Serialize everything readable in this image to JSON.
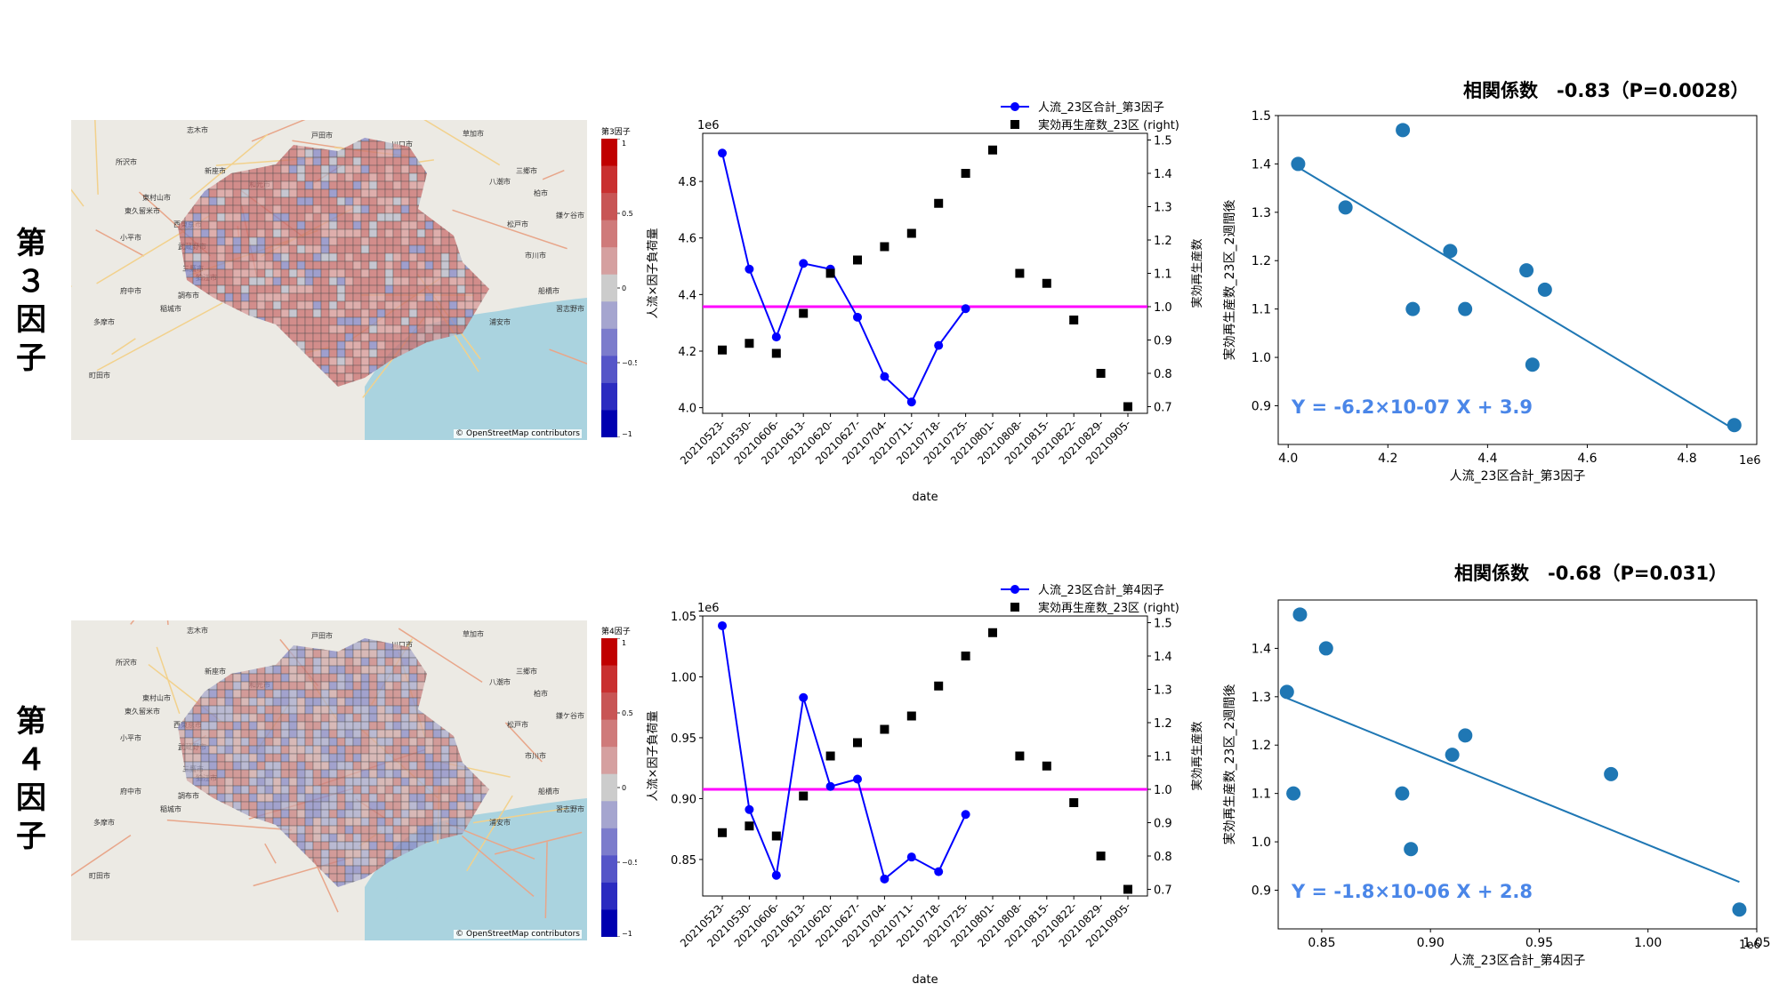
{
  "rows": [
    {
      "label": "第３因子",
      "map": {
        "colorbar_title": "第3因子",
        "colorbar_ticks": [
          "1",
          "0.5",
          "0",
          "−0.5",
          "−1"
        ],
        "attribution": "© OpenStreetMap contributors",
        "places": [
          "志木市",
          "戸田市",
          "川口市",
          "草加市",
          "三郷市",
          "所沢市",
          "新座市",
          "和光市",
          "八潮市",
          "東村山市",
          "東久留米市",
          "西東京市",
          "小平市",
          "武蔵野市",
          "三鷹市",
          "府中市",
          "調布市",
          "稲城市",
          "多摩市",
          "町田市",
          "狛江市",
          "浦安市",
          "市川市",
          "船橋市",
          "習志野市",
          "鎌ケ谷市",
          "松戸市",
          "柏市"
        ]
      },
      "chart_data": {
        "type": "line",
        "x": [
          "20210523-",
          "20210530-",
          "20210606-",
          "20210613-",
          "20210620-",
          "20210627-",
          "20210704-",
          "20210711-",
          "20210718-",
          "20210725-",
          "20210801-",
          "20210808-",
          "20210815-",
          "20210822-",
          "20210829-",
          "20210905-"
        ],
        "offset_label": "1e6",
        "xlabel": "date",
        "ylabel": "人流×因子負荷量",
        "ylabel_right": "実効再生産数",
        "ylim": [
          3.98,
          4.97
        ],
        "yticks": [
          4.0,
          4.2,
          4.4,
          4.6,
          4.8
        ],
        "ylim_right": [
          0.68,
          1.52
        ],
        "yticks_right": [
          0.7,
          0.8,
          0.9,
          1.0,
          1.1,
          1.2,
          1.3,
          1.4,
          1.5
        ],
        "hline_right": 1.0,
        "series": [
          {
            "name": "人流_23区合計_第3因子",
            "axis": "left",
            "color": "#0000ff",
            "values": [
              4.9,
              4.49,
              4.25,
              4.51,
              4.49,
              4.32,
              4.11,
              4.02,
              4.22,
              4.35,
              null,
              null,
              null,
              null,
              null,
              null
            ]
          },
          {
            "name": "実効再生産数_23区 (right)",
            "axis": "right",
            "color": "#000000",
            "values": [
              0.87,
              0.89,
              0.86,
              0.98,
              1.1,
              1.14,
              1.18,
              1.22,
              1.31,
              1.4,
              1.47,
              1.1,
              1.07,
              0.96,
              0.8,
              0.7
            ]
          }
        ]
      },
      "scatter": {
        "title": "相関係数　-0.83（P=0.0028）",
        "equation": "Y = -6.2×10-07 X + 3.9",
        "chart_data": {
          "type": "scatter",
          "xlabel": "人流_23区合計_第3因子",
          "ylabel": "実効再生産数_23区_2週間後",
          "offset_label": "1e6",
          "xlim": [
            3.98,
            4.94
          ],
          "xticks": [
            4.0,
            4.2,
            4.4,
            4.6,
            4.8
          ],
          "ylim": [
            0.82,
            1.5
          ],
          "yticks": [
            0.9,
            1.0,
            1.1,
            1.2,
            1.3,
            1.4,
            1.5
          ],
          "color": "#1f77b4",
          "points": [
            [
              4.02,
              1.4
            ],
            [
              4.115,
              1.31
            ],
            [
              4.23,
              1.47
            ],
            [
              4.25,
              1.1
            ],
            [
              4.325,
              1.22
            ],
            [
              4.355,
              1.1
            ],
            [
              4.478,
              1.18
            ],
            [
              4.49,
              0.985
            ],
            [
              4.515,
              1.14
            ],
            [
              4.895,
              0.86
            ]
          ],
          "fit_line": {
            "x": [
              4.02,
              4.895
            ],
            "y": [
              1.393,
              0.851
            ]
          }
        }
      }
    },
    {
      "label": "第４因子",
      "map": {
        "colorbar_title": "第4因子",
        "colorbar_ticks": [
          "1",
          "0.5",
          "0",
          "−0.5",
          "−1"
        ],
        "attribution": "© OpenStreetMap contributors",
        "places": [
          "志木市",
          "戸田市",
          "川口市",
          "草加市",
          "三郷市",
          "所沢市",
          "新座市",
          "和光市",
          "八潮市",
          "東村山市",
          "東久留米市",
          "西東京市",
          "小平市",
          "武蔵野市",
          "三鷹市",
          "府中市",
          "調布市",
          "稲城市",
          "多摩市",
          "町田市",
          "狛江市",
          "浦安市",
          "市川市",
          "船橋市",
          "習志野市",
          "鎌ケ谷市",
          "松戸市",
          "柏市"
        ]
      },
      "chart_data": {
        "type": "line",
        "x": [
          "20210523-",
          "20210530-",
          "20210606-",
          "20210613-",
          "20210620-",
          "20210627-",
          "20210704-",
          "20210711-",
          "20210718-",
          "20210725-",
          "20210801-",
          "20210808-",
          "20210815-",
          "20210822-",
          "20210829-",
          "20210905-"
        ],
        "offset_label": "1e6",
        "xlabel": "date",
        "ylabel": "人流×因子負荷量",
        "ylabel_right": "実効再生産数",
        "ylim": [
          0.82,
          1.05
        ],
        "yticks": [
          0.85,
          0.9,
          0.95,
          1.0,
          1.05
        ],
        "ylim_right": [
          0.68,
          1.52
        ],
        "yticks_right": [
          0.7,
          0.8,
          0.9,
          1.0,
          1.1,
          1.2,
          1.3,
          1.4,
          1.5
        ],
        "hline_right": 1.0,
        "series": [
          {
            "name": "人流_23区合計_第4因子",
            "axis": "left",
            "color": "#0000ff",
            "values": [
              1.042,
              0.891,
              0.837,
              0.983,
              0.91,
              0.916,
              0.834,
              0.852,
              0.84,
              0.887,
              null,
              null,
              null,
              null,
              null,
              null
            ]
          },
          {
            "name": "実効再生産数_23区 (right)",
            "axis": "right",
            "color": "#000000",
            "values": [
              0.87,
              0.89,
              0.86,
              0.98,
              1.1,
              1.14,
              1.18,
              1.22,
              1.31,
              1.4,
              1.47,
              1.1,
              1.07,
              0.96,
              0.8,
              0.7
            ]
          }
        ]
      },
      "scatter": {
        "title": "相関係数　-0.68（P=0.031）",
        "equation": "Y = -1.8×10-06 X + 2.8",
        "chart_data": {
          "type": "scatter",
          "xlabel": "人流_23区合計_第4因子",
          "ylabel": "実効再生産数_23区_2週間後",
          "offset_label": "1e6",
          "xlim": [
            0.83,
            1.05
          ],
          "xticks": [
            0.85,
            0.9,
            0.95,
            1.0,
            1.05
          ],
          "ylim": [
            0.82,
            1.5
          ],
          "yticks": [
            0.9,
            1.0,
            1.1,
            1.2,
            1.3,
            1.4
          ],
          "color": "#1f77b4",
          "points": [
            [
              0.834,
              1.31
            ],
            [
              0.837,
              1.1
            ],
            [
              0.84,
              1.47
            ],
            [
              0.852,
              1.4
            ],
            [
              0.887,
              1.1
            ],
            [
              0.891,
              0.985
            ],
            [
              0.91,
              1.18
            ],
            [
              0.916,
              1.22
            ],
            [
              0.983,
              1.14
            ],
            [
              1.042,
              0.86
            ]
          ],
          "fit_line": {
            "x": [
              0.834,
              1.042
            ],
            "y": [
              1.297,
              0.917
            ]
          }
        }
      }
    }
  ]
}
